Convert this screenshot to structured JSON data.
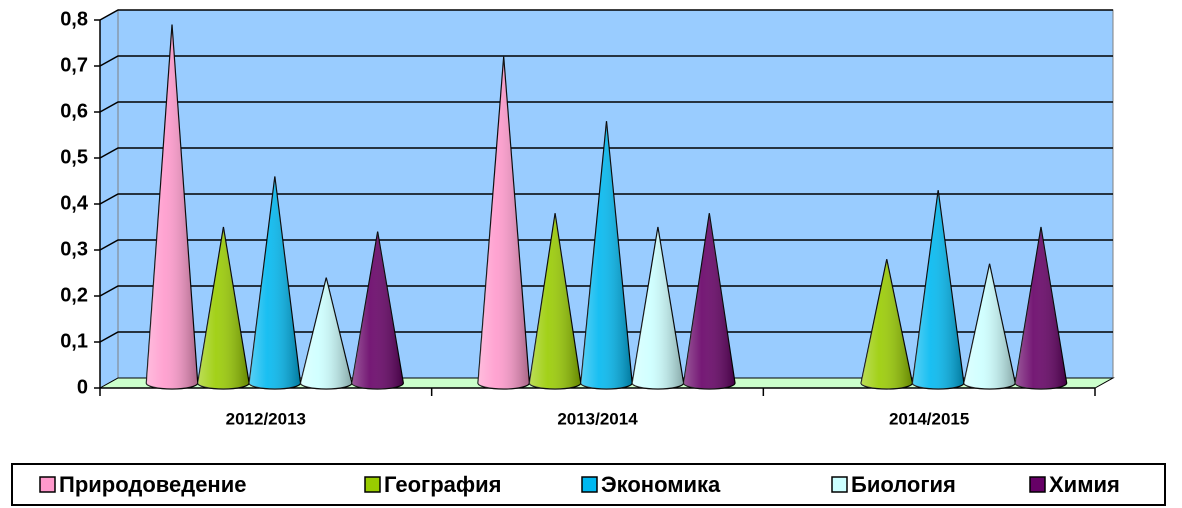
{
  "chart_data": {
    "type": "cone",
    "categories": [
      "2012/2013",
      "2013/2014",
      "2014/2015"
    ],
    "series": [
      {
        "name": "Природоведение",
        "color": "#ff99cc",
        "values": [
          0.79,
          0.72,
          null
        ]
      },
      {
        "name": "География",
        "color": "#99cc00",
        "values": [
          0.35,
          0.38,
          0.28
        ]
      },
      {
        "name": "Экономика",
        "color": "#00b8f0",
        "values": [
          0.46,
          0.58,
          0.43
        ]
      },
      {
        "name": "Биология",
        "color": "#ccffff",
        "values": [
          0.24,
          0.35,
          0.27
        ]
      },
      {
        "name": "Химия",
        "color": "#660066",
        "values": [
          0.34,
          0.38,
          0.35
        ]
      }
    ],
    "ylim": [
      0,
      0.8
    ],
    "yticks": [
      0,
      {
        "value": 0.1,
        "label": "0,1"
      },
      {
        "value": 0.2,
        "label": "0,2"
      },
      {
        "value": 0.3,
        "label": "0,3"
      },
      {
        "value": 0.4,
        "label": "0,4"
      },
      {
        "value": 0.5,
        "label": "0,5"
      },
      {
        "value": 0.6,
        "label": "0,6"
      },
      {
        "value": 0.7,
        "label": "0,7"
      },
      {
        "value": 0.8,
        "label": "0,8"
      }
    ],
    "grid": true,
    "wall_color": "#99ccff",
    "floor_color": "#ccffcc",
    "legend": "bottom"
  }
}
